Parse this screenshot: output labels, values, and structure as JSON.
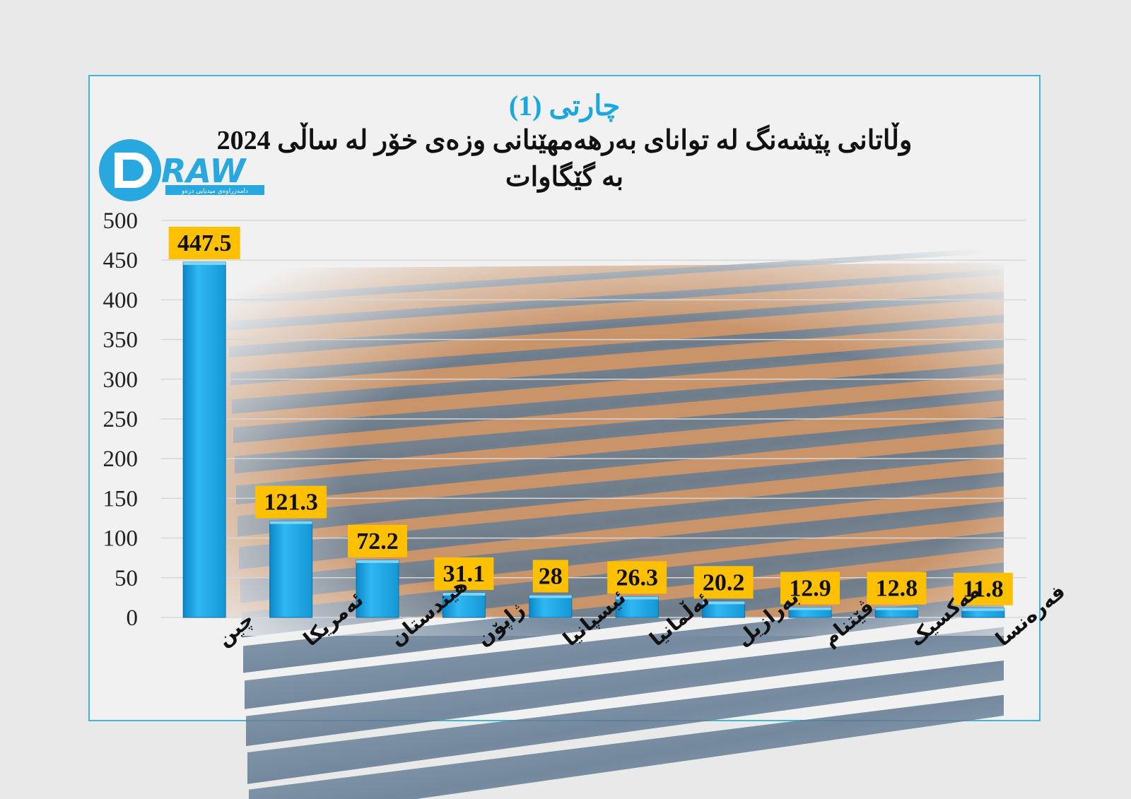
{
  "chart_data": {
    "type": "bar",
    "title": "چارتی (1)",
    "subtitle_line1": "وڵاتانی پێشەنگ لە توانای بەرهەمهێنانی وزەی خۆر لە ساڵی 2024",
    "subtitle_line2": "بە گێگاوات",
    "categories": [
      "چین",
      "ئەمریکا",
      "هیندستان",
      "ژاپۆن",
      "ئیسپانیا",
      "ئەڵمانیا",
      "بەرازیل",
      "ڤێتنام",
      "مەکسیک",
      "فەرەنسا"
    ],
    "values": [
      447.5,
      121.3,
      72.2,
      31.1,
      28,
      26.3,
      20.2,
      12.9,
      12.8,
      11.8
    ],
    "value_labels": [
      "447.5",
      "121.3",
      "72.2",
      "31.1",
      "28",
      "26.3",
      "20.2",
      "12.9",
      "12.8",
      "11.8"
    ],
    "yticks": [
      "0",
      "50",
      "100",
      "150",
      "200",
      "250",
      "300",
      "350",
      "400",
      "450",
      "500"
    ],
    "ylim": [
      0,
      500
    ],
    "grid": true,
    "legend": "none",
    "colors": {
      "bar": "#1eaaea",
      "bar_dark": "#0d7fc0",
      "label_bg": "#ffc000",
      "title": "#1aa7e0",
      "frame": "#3fb5dc"
    }
  },
  "logo": {
    "name": "DRAW",
    "tagline": "دامەزراوەی میدیایی درەو"
  }
}
